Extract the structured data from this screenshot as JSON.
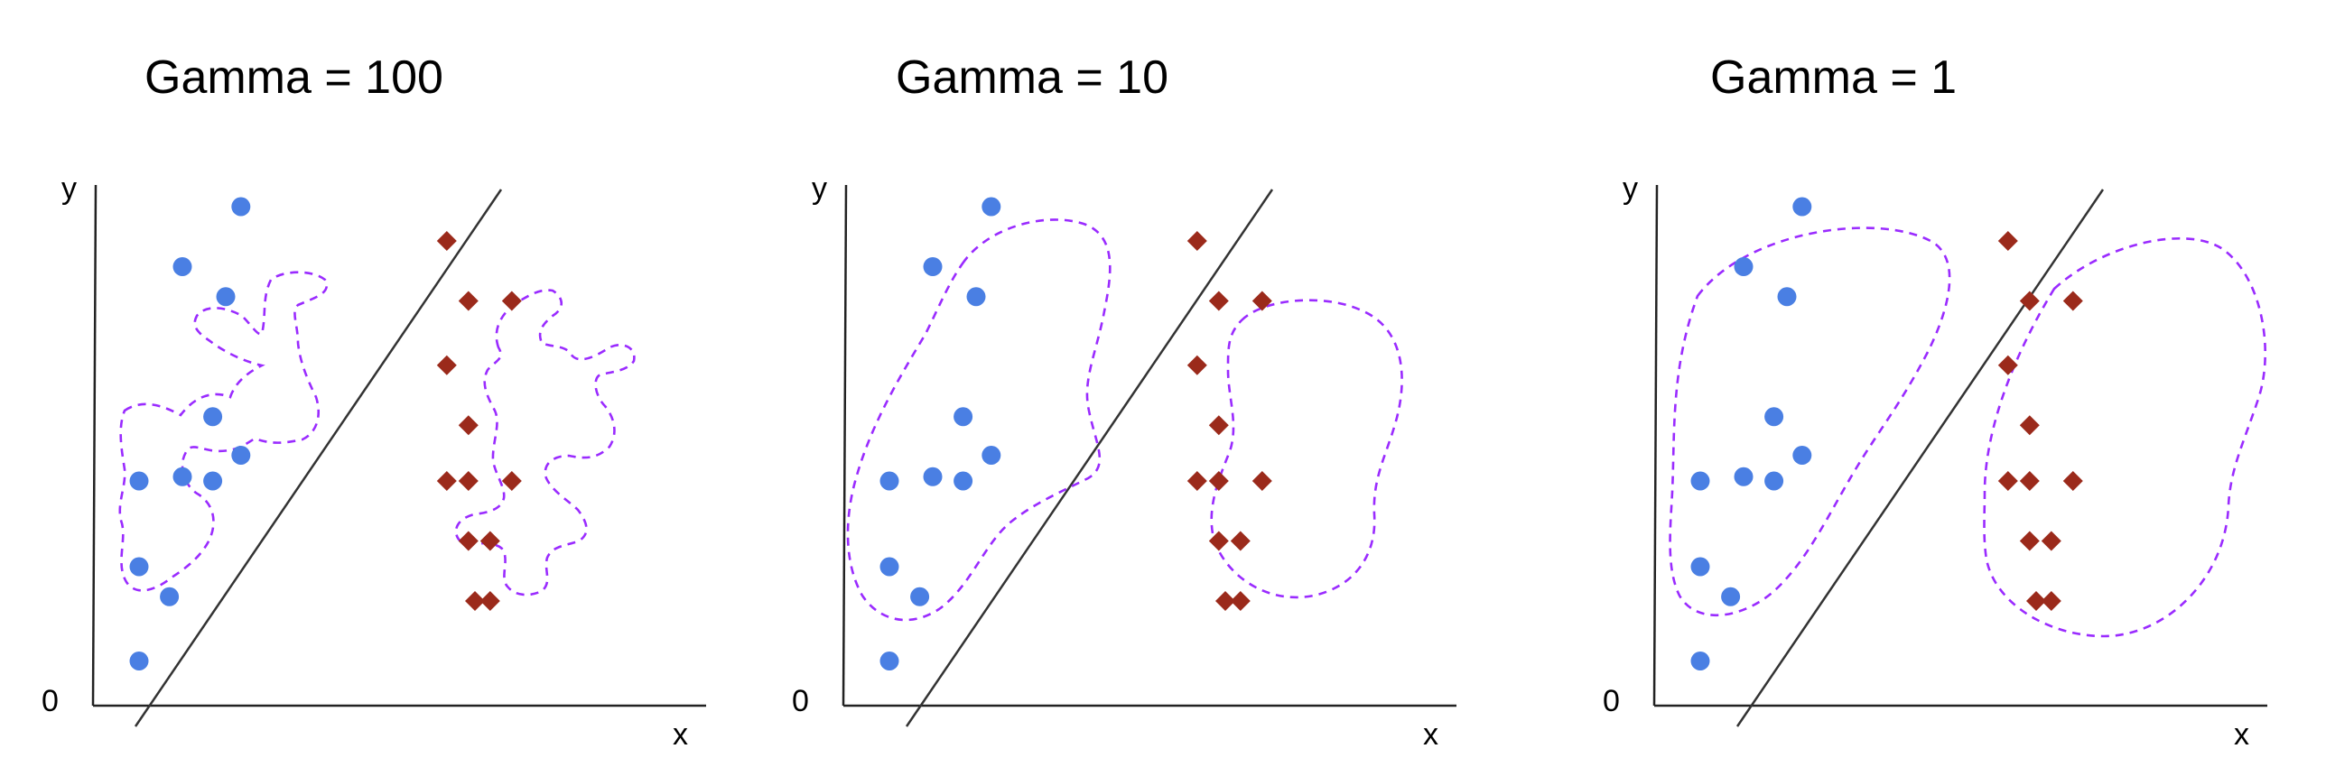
{
  "colors": {
    "class_a": "#4a7fe3",
    "class_b": "#9b2a1b",
    "outline": "#9a2bff",
    "axis": "#222222",
    "boundary": "#333333"
  },
  "axis_labels": {
    "x": "x",
    "y": "y",
    "origin": "0"
  },
  "panels": [
    {
      "id": "gamma-100",
      "title": "Gamma = 100",
      "outline_style": "per-cluster-tight"
    },
    {
      "id": "gamma-10",
      "title": "Gamma = 10",
      "outline_style": "per-class-smooth"
    },
    {
      "id": "gamma-1",
      "title": "Gamma = 1",
      "outline_style": "per-class-loose"
    }
  ],
  "class_a_points": [
    {
      "x": 1.0,
      "y": 3.6
    },
    {
      "x": 1.0,
      "y": 2.6
    },
    {
      "x": 1.0,
      "y": 1.5
    },
    {
      "x": 1.7,
      "y": 2.25
    },
    {
      "x": 2.0,
      "y": 6.1
    },
    {
      "x": 2.0,
      "y": 3.65
    },
    {
      "x": 2.7,
      "y": 4.35
    },
    {
      "x": 2.7,
      "y": 3.6
    },
    {
      "x": 3.0,
      "y": 5.75
    },
    {
      "x": 3.35,
      "y": 3.9
    },
    {
      "x": 3.35,
      "y": 6.8
    }
  ],
  "class_b_points": [
    {
      "x": 8.1,
      "y": 6.4
    },
    {
      "x": 8.1,
      "y": 4.95
    },
    {
      "x": 8.1,
      "y": 3.6
    },
    {
      "x": 8.6,
      "y": 5.7
    },
    {
      "x": 8.6,
      "y": 4.25
    },
    {
      "x": 8.6,
      "y": 3.6
    },
    {
      "x": 9.1,
      "y": 2.9
    },
    {
      "x": 8.6,
      "y": 2.9
    },
    {
      "x": 8.75,
      "y": 2.2
    },
    {
      "x": 9.6,
      "y": 5.7
    },
    {
      "x": 9.6,
      "y": 3.6
    },
    {
      "x": 9.1,
      "y": 2.2
    }
  ]
}
